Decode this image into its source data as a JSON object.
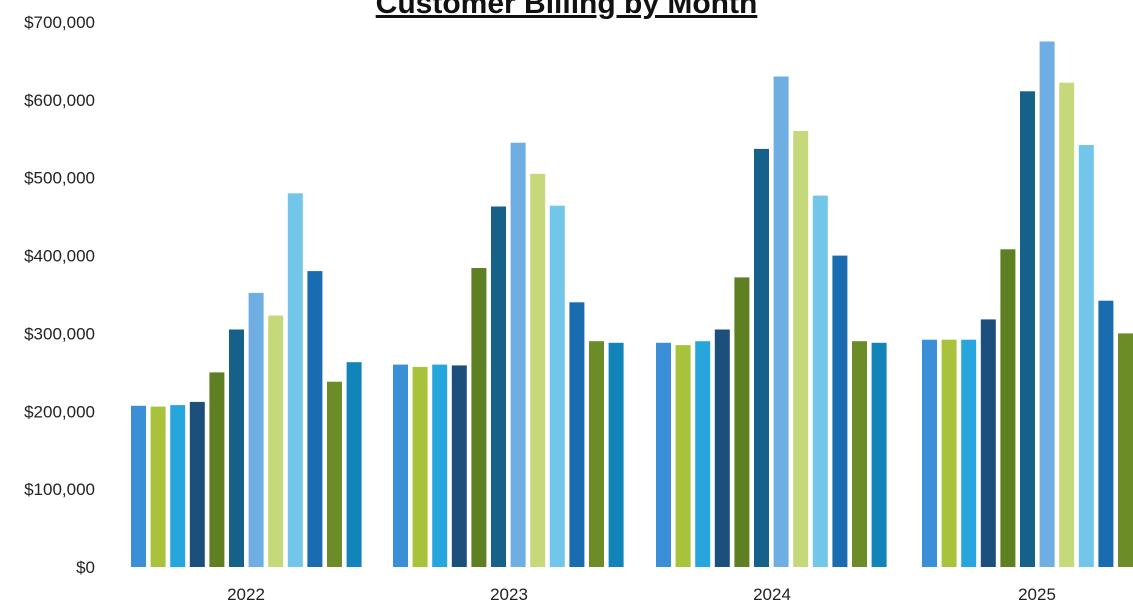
{
  "chart_data": {
    "type": "bar",
    "title": "Customer Billing by Month",
    "xlabel": "",
    "ylabel": "",
    "categories": [
      "2022",
      "2023",
      "2024",
      "2025"
    ],
    "ylim": [
      0,
      700000
    ],
    "yticks": [
      "$0",
      "$100,000",
      "$200,000",
      "$300,000",
      "$400,000",
      "$500,000",
      "$600,000",
      "$700,000"
    ],
    "grid": false,
    "legend": "none",
    "bar_colors": [
      "#3a8fd6",
      "#a9c23c",
      "#27a6de",
      "#1d4f7c",
      "#5e7f22",
      "#15618a",
      "#6faee3",
      "#c6d97a",
      "#72c6ea",
      "#1a6cb0",
      "#6b8c26",
      "#1284b9"
    ],
    "groups": [
      {
        "category": "2022",
        "values": [
          207000,
          206000,
          208000,
          212000,
          250000,
          305000,
          352000,
          323000,
          480000,
          380000,
          238000,
          263000
        ]
      },
      {
        "category": "2023",
        "values": [
          260000,
          257000,
          260000,
          259000,
          384000,
          463000,
          545000,
          505000,
          464000,
          340000,
          290000,
          288000
        ]
      },
      {
        "category": "2024",
        "values": [
          288000,
          285000,
          290000,
          305000,
          372000,
          537000,
          630000,
          560000,
          477000,
          400000,
          290000,
          288000
        ]
      },
      {
        "category": "2025",
        "values": [
          292000,
          292000,
          292000,
          318000,
          408000,
          611000,
          675000,
          622000,
          542000,
          342000,
          300000
        ]
      }
    ]
  }
}
